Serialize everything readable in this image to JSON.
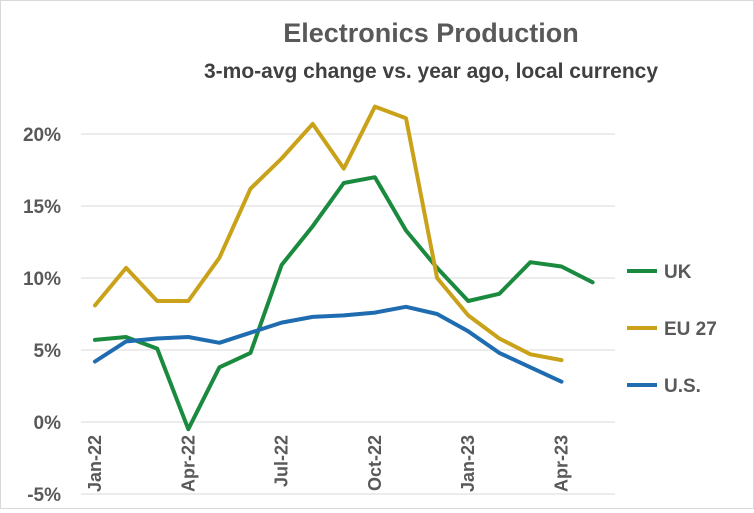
{
  "chart_data": {
    "type": "line",
    "title": "Electronics Production",
    "subtitle": "3-mo-avg change vs. year ago, local currency",
    "xlabel": "",
    "ylabel": "",
    "x": [
      "2022-01",
      "2022-02",
      "2022-03",
      "2022-04",
      "2022-05",
      "2022-06",
      "2022-07",
      "2022-08",
      "2022-09",
      "2022-10",
      "2022-11",
      "2022-12",
      "2023-01",
      "2023-02",
      "2023-03",
      "2023-04",
      "2023-05"
    ],
    "x_tick_labels": [
      "Jan-22",
      "Apr-22",
      "Jul-22",
      "Oct-22",
      "Jan-23",
      "Apr-23"
    ],
    "y_tick_labels": [
      "-5%",
      "0%",
      "5%",
      "10%",
      "15%",
      "20%"
    ],
    "ylim": [
      -5,
      22
    ],
    "yticks": [
      -5,
      0,
      5,
      10,
      15,
      20
    ],
    "grid": true,
    "legend_position": "right",
    "series": [
      {
        "name": "UK",
        "color": "#1a8a3e",
        "values": [
          5.7,
          5.9,
          5.1,
          -0.5,
          3.8,
          4.8,
          10.9,
          13.6,
          16.6,
          17.0,
          13.3,
          10.7,
          8.4,
          8.9,
          11.1,
          10.8,
          9.7
        ]
      },
      {
        "name": "EU 27",
        "color": "#c9a21a",
        "values": [
          8.1,
          10.7,
          8.4,
          8.4,
          11.4,
          16.2,
          18.3,
          20.7,
          17.6,
          21.9,
          21.1,
          10.0,
          7.4,
          5.8,
          4.7,
          4.3,
          null
        ]
      },
      {
        "name": "U.S.",
        "color": "#1f6cb0",
        "values": [
          4.2,
          5.6,
          5.8,
          5.9,
          5.5,
          6.2,
          6.9,
          7.3,
          7.4,
          7.6,
          8.0,
          7.5,
          6.3,
          4.8,
          3.8,
          2.8,
          null
        ]
      }
    ]
  }
}
